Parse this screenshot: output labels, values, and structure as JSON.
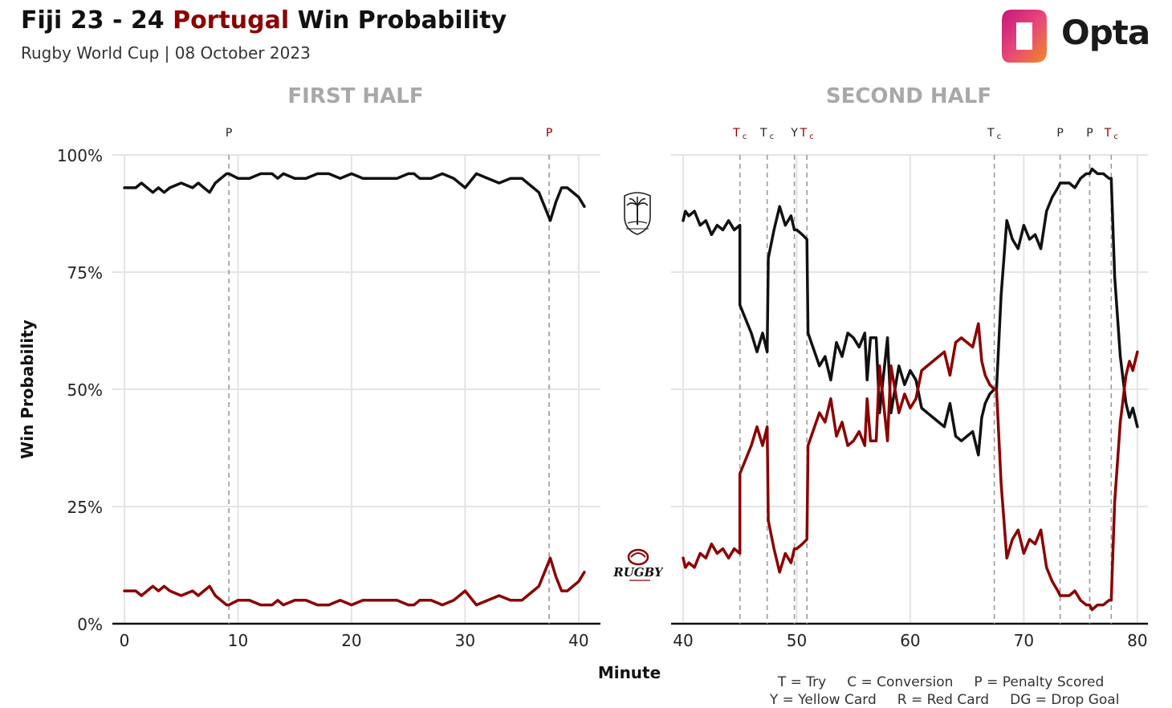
{
  "header": {
    "title_part1": "Fiji 23 - 24 ",
    "title_team2": "Portugal",
    "title_part2": " Win Probability",
    "subtitle": "Rugby World Cup | 08 October 2023",
    "brand": "Opta"
  },
  "legend": {
    "line1": [
      "T = Try",
      "C = Conversion",
      "P = Penalty Scored"
    ],
    "line2": [
      "Y = Yellow Card",
      "R = Red Card",
      "DG = Drop Goal"
    ]
  },
  "badges": {
    "fiji": "fiji-crest-icon",
    "portugal": "portugal-rugby-logo-icon",
    "portugal_text": "RUGBY"
  },
  "colors": {
    "fiji": "#111111",
    "portugal": "#8b0000",
    "grid": "#e4e4e4",
    "event_line": "#9a9a9a",
    "half_title": "#a8a8a8"
  },
  "chart_data": [
    {
      "type": "line",
      "title": "FIRST HALF",
      "xlabel": "Minute",
      "ylabel": "Win Probability",
      "xlim": [
        0,
        41
      ],
      "ylim": [
        0,
        100
      ],
      "xticks": [
        0,
        10,
        20,
        30,
        40
      ],
      "yticks": [
        0,
        25,
        50,
        75,
        100
      ],
      "ytick_labels": [
        "0%",
        "25%",
        "50%",
        "75%",
        "100%"
      ],
      "events": [
        {
          "minute": 9.2,
          "label": "P",
          "team": "fiji"
        },
        {
          "minute": 37.4,
          "label": "P",
          "team": "portugal"
        }
      ],
      "series": [
        {
          "name": "Fiji",
          "color": "#111111",
          "x": [
            0,
            1,
            1.5,
            2,
            2.5,
            3,
            3.5,
            4,
            5,
            6,
            6.5,
            7,
            7.5,
            8,
            8.5,
            9,
            9.2,
            10,
            11,
            12,
            13,
            13.5,
            14,
            15,
            16,
            17,
            18,
            19,
            20,
            21,
            22,
            23,
            24,
            25,
            25.5,
            26,
            27,
            28,
            29,
            30,
            31,
            32,
            33,
            34,
            35,
            35.5,
            36,
            36.5,
            37,
            37.5,
            38,
            38.5,
            39,
            40,
            40.5
          ],
          "y": [
            93,
            93,
            94,
            93,
            92,
            93,
            92,
            93,
            94,
            93,
            94,
            93,
            92,
            94,
            95,
            96,
            96,
            95,
            95,
            96,
            96,
            95,
            96,
            95,
            95,
            96,
            96,
            95,
            96,
            95,
            95,
            95,
            95,
            96,
            96,
            95,
            95,
            96,
            95,
            93,
            96,
            95,
            94,
            95,
            95,
            94,
            93,
            92,
            89,
            86,
            90,
            93,
            93,
            91,
            89
          ]
        },
        {
          "name": "Portugal",
          "color": "#8b0000",
          "x": [
            0,
            1,
            1.5,
            2,
            2.5,
            3,
            3.5,
            4,
            5,
            6,
            6.5,
            7,
            7.5,
            8,
            8.5,
            9,
            9.2,
            10,
            11,
            12,
            13,
            13.5,
            14,
            15,
            16,
            17,
            18,
            19,
            20,
            21,
            22,
            23,
            24,
            25,
            25.5,
            26,
            27,
            28,
            29,
            30,
            31,
            32,
            33,
            34,
            35,
            35.5,
            36,
            36.5,
            37,
            37.5,
            38,
            38.5,
            39,
            40,
            40.5
          ],
          "y": [
            7,
            7,
            6,
            7,
            8,
            7,
            8,
            7,
            6,
            7,
            6,
            7,
            8,
            6,
            5,
            4,
            4,
            5,
            5,
            4,
            4,
            5,
            4,
            5,
            5,
            4,
            4,
            5,
            4,
            5,
            5,
            5,
            5,
            4,
            4,
            5,
            5,
            4,
            5,
            7,
            4,
            5,
            6,
            5,
            5,
            6,
            7,
            8,
            11,
            14,
            10,
            7,
            7,
            9,
            11
          ]
        }
      ]
    },
    {
      "type": "line",
      "title": "SECOND HALF",
      "xlabel": "Minute",
      "ylabel": "Win Probability",
      "xlim": [
        40,
        81
      ],
      "ylim": [
        0,
        100
      ],
      "xticks": [
        40,
        50,
        60,
        70,
        80
      ],
      "yticks": [
        0,
        25,
        50,
        75,
        100
      ],
      "events": [
        {
          "minute": 45.0,
          "label": "T",
          "sub": "c",
          "team": "portugal"
        },
        {
          "minute": 47.4,
          "label": "T",
          "sub": "c",
          "team": "fiji"
        },
        {
          "minute": 49.8,
          "label": "Y",
          "sub": "",
          "team": "fiji"
        },
        {
          "minute": 50.9,
          "label": "T",
          "sub": "c",
          "team": "portugal"
        },
        {
          "minute": 67.4,
          "label": "T",
          "sub": "c",
          "team": "fiji"
        },
        {
          "minute": 73.2,
          "label": "P",
          "sub": "",
          "team": "fiji"
        },
        {
          "minute": 75.8,
          "label": "P",
          "sub": "",
          "team": "fiji"
        },
        {
          "minute": 77.7,
          "label": "T",
          "sub": "c",
          "team": "portugal"
        }
      ],
      "series": [
        {
          "name": "Fiji",
          "color": "#111111",
          "x": [
            40,
            40.2,
            40.5,
            41,
            41.5,
            42,
            42.5,
            43,
            43.5,
            44,
            44.5,
            45,
            45,
            46,
            46.5,
            47,
            47.4,
            47.5,
            48,
            48.5,
            49,
            49.5,
            49.8,
            50,
            50.5,
            50.9,
            51,
            52,
            52.5,
            53,
            53.5,
            54,
            54.5,
            55,
            55.5,
            56,
            56.2,
            56.5,
            57,
            57.3,
            58,
            58.3,
            59,
            59.5,
            60,
            60.5,
            61,
            62,
            63,
            63.5,
            64,
            64.5,
            65,
            65.5,
            66,
            66.3,
            66.6,
            67,
            67.4,
            67.6,
            68,
            68.5,
            69,
            69.5,
            70,
            70.5,
            71,
            71.5,
            72,
            72.5,
            73,
            73.2,
            73.5,
            74,
            74.5,
            75,
            75.5,
            75.8,
            76,
            76.5,
            77,
            77.5,
            77.7,
            78,
            78.5,
            79,
            79.3,
            79.6,
            80
          ],
          "y": [
            86,
            88,
            87,
            88,
            85,
            86,
            83,
            85,
            84,
            86,
            84,
            85,
            68,
            62,
            58,
            62,
            58,
            78,
            84,
            89,
            85,
            87,
            84,
            84,
            83,
            82,
            62,
            55,
            57,
            52,
            60,
            57,
            62,
            61,
            59,
            62,
            52,
            61,
            61,
            45,
            61,
            45,
            55,
            51,
            54,
            52,
            46,
            44,
            42,
            47,
            40,
            39,
            40,
            41,
            36,
            44,
            47,
            49,
            50,
            50,
            70,
            86,
            82,
            80,
            85,
            82,
            83,
            80,
            88,
            91,
            93,
            94,
            94,
            94,
            93,
            95,
            96,
            96,
            97,
            96,
            96,
            95,
            95,
            74,
            57,
            47,
            44,
            46,
            42
          ]
        },
        {
          "name": "Portugal",
          "color": "#8b0000",
          "x": [
            40,
            40.2,
            40.5,
            41,
            41.5,
            42,
            42.5,
            43,
            43.5,
            44,
            44.5,
            45,
            45,
            46,
            46.5,
            47,
            47.4,
            47.5,
            48,
            48.5,
            49,
            49.5,
            49.8,
            50,
            50.5,
            50.9,
            51,
            52,
            52.5,
            53,
            53.5,
            54,
            54.5,
            55,
            55.5,
            56,
            56.2,
            56.5,
            57,
            57.3,
            58,
            58.3,
            59,
            59.5,
            60,
            60.5,
            61,
            62,
            63,
            63.5,
            64,
            64.5,
            65,
            65.5,
            66,
            66.3,
            66.6,
            67,
            67.4,
            67.6,
            68,
            68.5,
            69,
            69.5,
            70,
            70.5,
            71,
            71.5,
            72,
            72.5,
            73,
            73.2,
            73.5,
            74,
            74.5,
            75,
            75.5,
            75.8,
            76,
            76.5,
            77,
            77.5,
            77.7,
            78,
            78.5,
            79,
            79.3,
            79.6,
            80
          ],
          "y": [
            14,
            12,
            13,
            12,
            15,
            14,
            17,
            15,
            16,
            14,
            16,
            15,
            32,
            38,
            42,
            38,
            42,
            22,
            16,
            11,
            15,
            13,
            16,
            16,
            17,
            18,
            38,
            45,
            43,
            48,
            40,
            43,
            38,
            39,
            41,
            38,
            48,
            39,
            39,
            55,
            39,
            55,
            45,
            49,
            46,
            48,
            54,
            56,
            58,
            53,
            60,
            61,
            60,
            59,
            64,
            56,
            53,
            51,
            50,
            50,
            30,
            14,
            18,
            20,
            15,
            18,
            17,
            20,
            12,
            9,
            7,
            6,
            6,
            6,
            7,
            5,
            4,
            4,
            3,
            4,
            4,
            5,
            5,
            26,
            43,
            53,
            56,
            54,
            58
          ]
        }
      ]
    }
  ]
}
